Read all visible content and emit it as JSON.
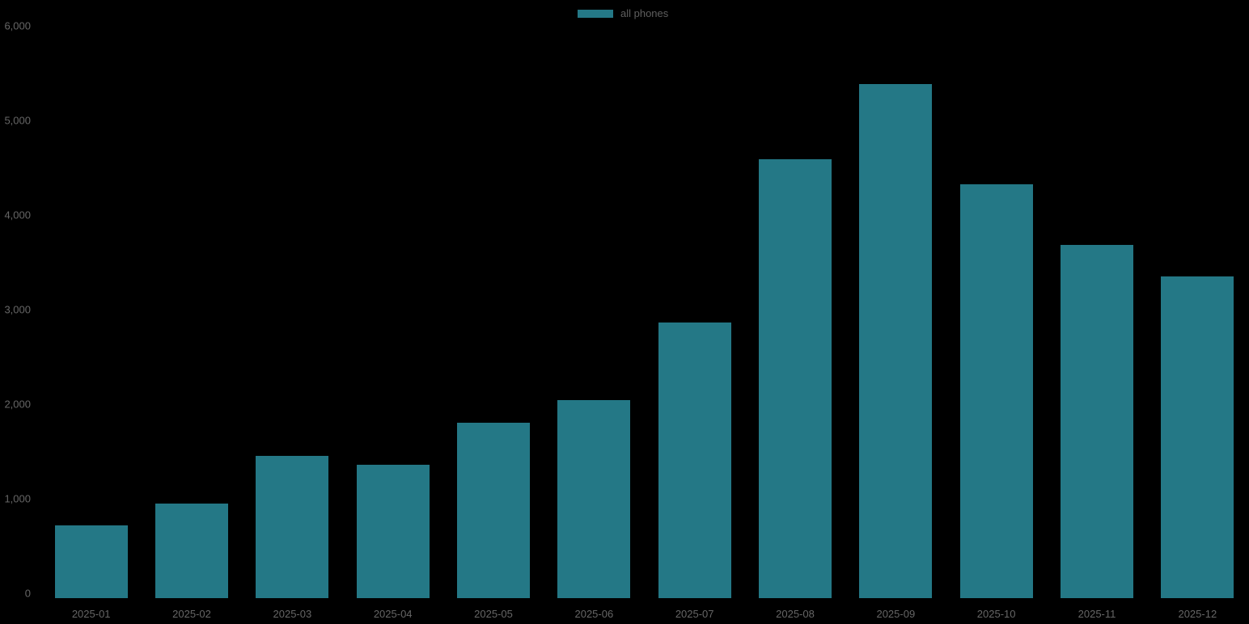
{
  "colors": {
    "background": "#000000",
    "bar": "#247886",
    "axis_text": "#666666",
    "legend_text": "#5e5e5e"
  },
  "legend": {
    "label": "all phones"
  },
  "chart_data": {
    "type": "bar",
    "title": "",
    "xlabel": "",
    "ylabel": "",
    "series_name": "all phones",
    "categories": [
      "2025-01",
      "2025-02",
      "2025-03",
      "2025-04",
      "2025-05",
      "2025-06",
      "2025-07",
      "2025-08",
      "2025-09",
      "2025-10",
      "2025-11",
      "2025-12"
    ],
    "values": [
      765,
      995,
      1500,
      1405,
      1855,
      2095,
      2915,
      4640,
      5440,
      4375,
      3735,
      3405
    ],
    "ylim": [
      0,
      6000
    ],
    "yticks": [
      0,
      1000,
      2000,
      3000,
      4000,
      5000,
      6000
    ],
    "ytick_labels": [
      "0",
      "1,000",
      "2,000",
      "3,000",
      "4,000",
      "5,000",
      "6,000"
    ],
    "grid": false,
    "legend_position": "top-center"
  }
}
